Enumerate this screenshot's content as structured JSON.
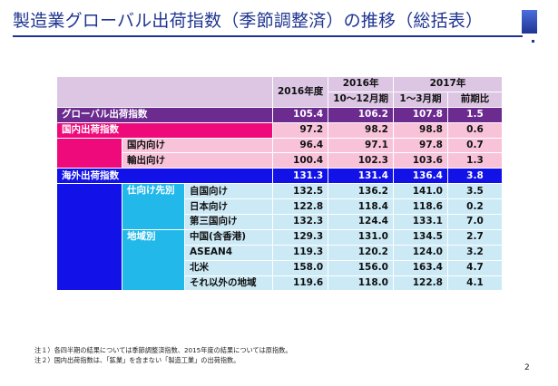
{
  "title": "製造業グローバル出荷指数（季節調整済）の推移（総括表）",
  "header": {
    "col_2016_fy": "2016年度",
    "col_2016": "2016年",
    "col_2017": "2017年",
    "col_q4_2016": "10～12月期",
    "col_q1_2017": "1～3月期",
    "col_qoq": "前期比"
  },
  "labels": {
    "global": "グローバル出荷指数",
    "domestic": "国内出荷指数",
    "domestic_use": "国内向け",
    "export": "輸出向け",
    "overseas": "海外出荷指数",
    "by_destination": "仕向け先別",
    "own_country": "自国向け",
    "to_japan": "日本向け",
    "third_country": "第三国向け",
    "by_region": "地域別",
    "china": "中国(含香港)",
    "asean4": "ASEAN4",
    "north_america": "北米",
    "other_regions": "それ以外の地域"
  },
  "values": {
    "global": [
      "105.4",
      "106.2",
      "107.8",
      "1.5"
    ],
    "domestic": [
      "97.2",
      "98.2",
      "98.8",
      "0.6"
    ],
    "domestic_use": [
      "96.4",
      "97.1",
      "97.8",
      "0.7"
    ],
    "export": [
      "100.4",
      "102.3",
      "103.6",
      "1.3"
    ],
    "overseas": [
      "131.3",
      "131.4",
      "136.4",
      "3.8"
    ],
    "own_country": [
      "132.5",
      "136.2",
      "141.0",
      "3.5"
    ],
    "to_japan": [
      "122.8",
      "118.4",
      "118.6",
      "0.2"
    ],
    "third_country": [
      "132.3",
      "124.4",
      "133.1",
      "7.0"
    ],
    "china": [
      "129.3",
      "131.0",
      "134.5",
      "2.7"
    ],
    "asean4": [
      "119.3",
      "120.2",
      "124.0",
      "3.2"
    ],
    "north_america": [
      "158.0",
      "156.0",
      "163.4",
      "4.7"
    ],
    "other_regions": [
      "119.6",
      "118.0",
      "122.8",
      "4.1"
    ]
  },
  "notes": [
    "注１）各四半期の結果については季節調整済指数、2015年度の結果については原指数。",
    "注２）国内出荷指数は、「鉱業」を含まない「製造工業」の出荷指数。"
  ],
  "page_number": "2"
}
